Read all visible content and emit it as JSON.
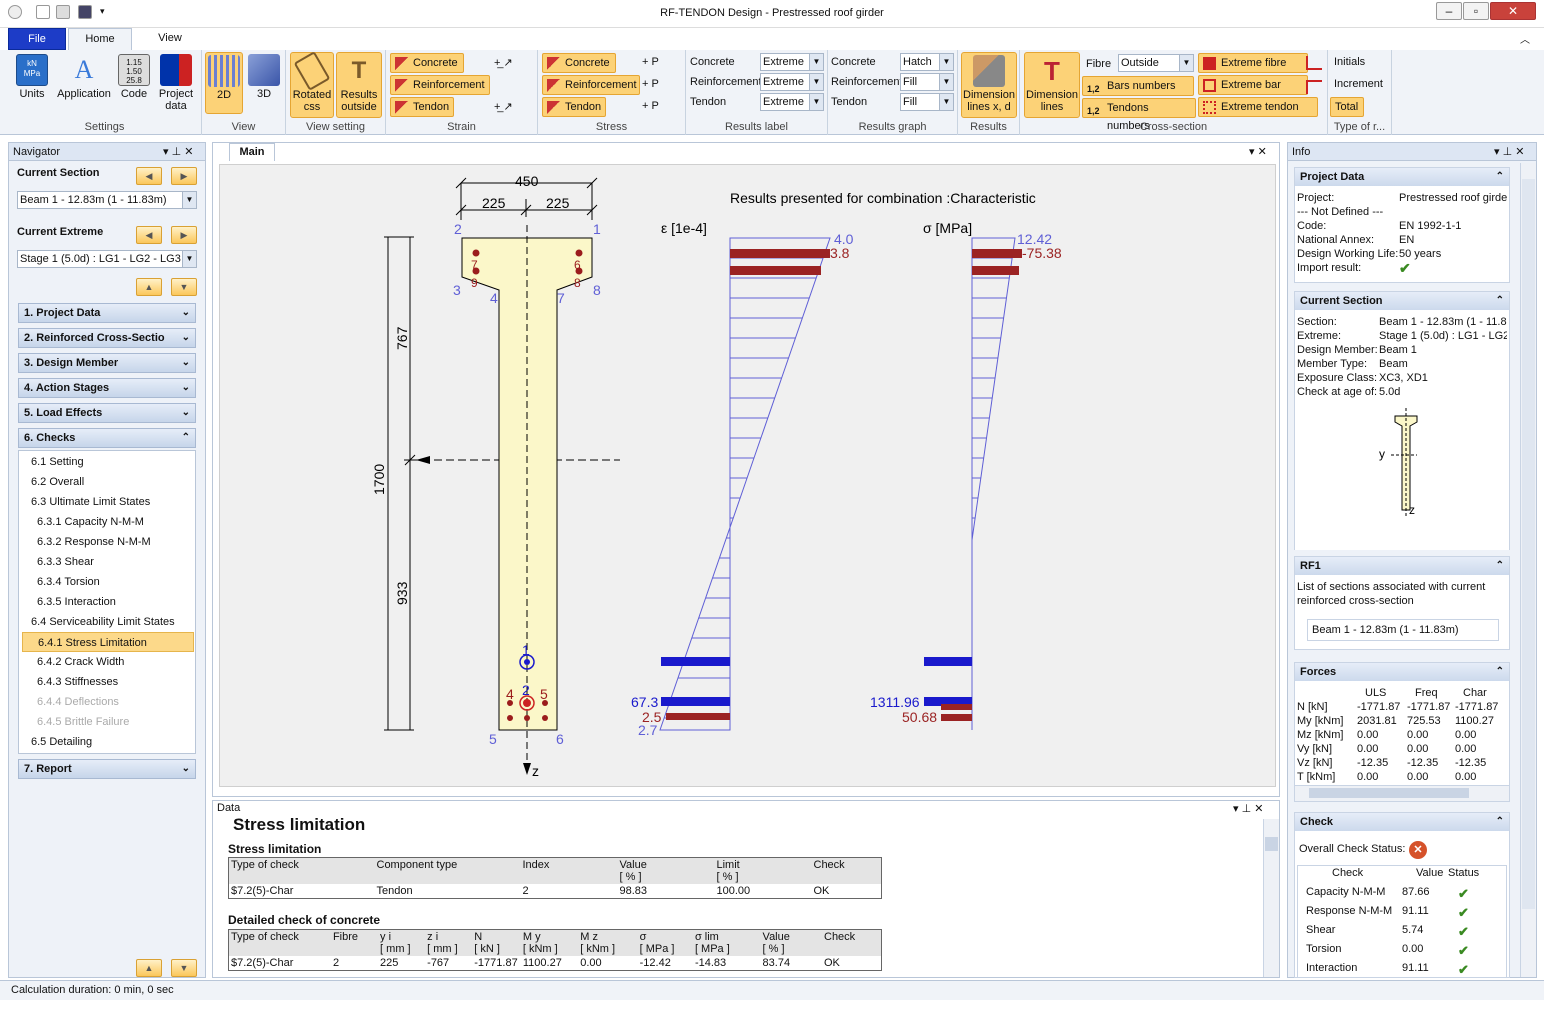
{
  "window": {
    "title": "RF-TENDON Design - Prestressed roof girder"
  },
  "ribbon_tabs": [
    "File",
    "Home",
    "View"
  ],
  "ribbon": {
    "settings": {
      "label": "Settings",
      "units": "Units",
      "application": "Application",
      "code": "Code",
      "project_data_1": "Project",
      "project_data_2": "data"
    },
    "view": {
      "label": "View",
      "b2d": "2D",
      "b3d": "3D"
    },
    "view_setting": {
      "label": "View setting",
      "rotated_1": "Rotated",
      "rotated_2": "css",
      "results_1": "Results",
      "results_2": "outside"
    },
    "strain": {
      "label": "Strain",
      "concrete": "Concrete",
      "reinforcement": "Reinforcement",
      "tendon": "Tendon"
    },
    "stress": {
      "label": "Stress",
      "concrete": "Concrete",
      "reinforcement": "Reinforcement",
      "tendon": "Tendon"
    },
    "results_label": {
      "label": "Results label",
      "concrete": "Concrete",
      "reinforcement": "Reinforcement",
      "tendon": "Tendon",
      "v1": "Extreme",
      "v2": "Extreme",
      "v3": "Extreme"
    },
    "results_graph": {
      "label": "Results graph",
      "concrete": "Concrete",
      "reinforcement": "Reinforcement",
      "tendon": "Tendon",
      "v1": "Hatch",
      "v2": "Fill",
      "v3": "Fill"
    },
    "results": {
      "label": "Results",
      "dim_1": "Dimension",
      "dim_2": "lines x, d"
    },
    "cross_section": {
      "label": "Cross-section",
      "dim_1": "Dimension",
      "dim_2": "lines",
      "fibre": "Fibre",
      "fibre_value": "Outside",
      "bars_numbers": "Bars numbers",
      "tendons_numbers": "Tendons numbers",
      "extreme_fibre": "Extreme fibre",
      "extreme_bar": "Extreme bar",
      "extreme_tendon": "Extreme tendon"
    },
    "type": {
      "label": "Type of r...",
      "initials": "Initials",
      "increment": "Increment",
      "total": "Total"
    }
  },
  "navigator": {
    "title": "Navigator",
    "current_section_label": "Current Section",
    "current_section_value": "Beam 1 - 12.83m (1 - 11.83m)",
    "current_extreme_label": "Current Extreme",
    "current_extreme_value": "Stage 1 (5.0d) : LG1 - LG2 - LG3",
    "sections": [
      "1. Project Data",
      "2. Reinforced Cross-Sectio",
      "3. Design Member",
      "4. Action Stages",
      "5. Load Effects",
      "6. Checks"
    ],
    "items": [
      "6.1 Setting",
      "6.2 Overall",
      "6.3 Ultimate Limit States",
      "6.3.1 Capacity N-M-M",
      "6.3.2 Response N-M-M",
      "6.3.3 Shear",
      "6.3.4 Torsion",
      "6.3.5 Interaction",
      "6.4 Serviceability Limit States",
      "6.4.1 Stress Limitation",
      "6.4.2 Crack Width",
      "6.4.3 Stiffnesses",
      "6.4.4 Deflections",
      "6.4.5 Brittle Failure",
      "6.5 Detailing"
    ],
    "report": "7. Report"
  },
  "main": {
    "tab": "Main",
    "heading": "Results presented for combination :Characteristic",
    "strain_axis": "ε [1e-4]",
    "stress_axis": "σ [MPa]",
    "dims": {
      "top": "450",
      "left": "225",
      "right": "225",
      "h1": "767",
      "h2": "1700",
      "h3": "933"
    },
    "pts": {
      "p1": "1",
      "p2": "2",
      "p3": "3",
      "p4": "4",
      "p5": "5",
      "p6": "6",
      "p7": "7",
      "p8": "8"
    },
    "bars_top": {
      "a": "7",
      "b": "9",
      "c": "6",
      "d": "8"
    },
    "tendon": {
      "t1": "1",
      "t2": "2",
      "b4": "4",
      "b5": "5",
      "b3": "3"
    },
    "z_label": "z",
    "strain_vals": {
      "top_blue": "4.0",
      "top_red": "3.8",
      "bot_blue": "67.3",
      "bot_red": "2.5",
      "bot_lav": "2.7"
    },
    "stress_vals": {
      "top_blue": "12.42",
      "top_red": "-75.38",
      "bot_blue": "1311.96",
      "bot_red": "50.68"
    }
  },
  "data": {
    "title": "Data",
    "heading": "Stress limitation",
    "sub1": "Stress limitation",
    "t1_headers": [
      "Type of check",
      "Component type",
      "Index",
      "Value",
      "Limit",
      "Check"
    ],
    "t1_units": [
      "",
      "",
      "",
      "[ % ]",
      "[ % ]",
      ""
    ],
    "t1_row": [
      "$7.2(5)-Char",
      "Tendon",
      "2",
      "98.83",
      "100.00",
      "OK"
    ],
    "sub2": "Detailed check of concrete",
    "t2_headers": [
      "Type of check",
      "Fibre",
      "y i",
      "z i",
      "N",
      "M y",
      "M z",
      "σ",
      "σ lim",
      "Value",
      "Check"
    ],
    "t2_units": [
      "",
      "",
      "[ mm ]",
      "[ mm ]",
      "[ kN ]",
      "[ kNm ]",
      "[ kNm ]",
      "[ MPa ]",
      "[ MPa ]",
      "[ % ]",
      ""
    ],
    "t2_row": [
      "$7.2(5)-Char",
      "2",
      "225",
      "-767",
      "-1771.87",
      "1100.27",
      "0.00",
      "-12.42",
      "-14.83",
      "83.74",
      "OK"
    ]
  },
  "info": {
    "title": "Info",
    "project": {
      "title": "Project Data",
      "rows": [
        [
          "Project:",
          "Prestressed roof girde"
        ],
        [
          "--- Not Defined ---",
          ""
        ],
        [
          "Code:",
          "EN 1992-1-1"
        ],
        [
          "National Annex:",
          "EN"
        ],
        [
          "Design Working Life:",
          "50 years"
        ],
        [
          "Import result:",
          ""
        ]
      ]
    },
    "section": {
      "title": "Current Section",
      "rows": [
        [
          "Section:",
          "Beam 1 - 12.83m (1 - 11.83"
        ],
        [
          "Extreme:",
          "Stage 1 (5.0d) : LG1 - LG2 -"
        ],
        [
          "Design Member:",
          "Beam 1"
        ],
        [
          "Member Type:",
          "Beam"
        ],
        [
          "Exposure Class:",
          "XC3, XD1"
        ],
        [
          "Check at age of:",
          "5.0d"
        ]
      ],
      "y": "y",
      "z": "z"
    },
    "rf1": {
      "title": "RF1",
      "text1": "List of sections associated with current",
      "text2": "reinforced cross-section",
      "item": "Beam 1 - 12.83m (1 - 11.83m)"
    },
    "forces": {
      "title": "Forces",
      "headers": [
        "",
        "ULS",
        "Freq",
        "Char"
      ],
      "rows": [
        [
          "N [kN]",
          "-1771.87",
          "-1771.87",
          "-1771.87"
        ],
        [
          "My [kNm]",
          "2031.81",
          "725.53",
          "1100.27"
        ],
        [
          "Mz [kNm]",
          "0.00",
          "0.00",
          "0.00"
        ],
        [
          "Vy [kN]",
          "0.00",
          "0.00",
          "0.00"
        ],
        [
          "Vz [kN]",
          "-12.35",
          "-12.35",
          "-12.35"
        ],
        [
          "T [kNm]",
          "0.00",
          "0.00",
          "0.00"
        ]
      ]
    },
    "check": {
      "title": "Check",
      "overall": "Overall Check Status:",
      "headers": [
        "Check",
        "Value",
        "Status"
      ],
      "rows": [
        [
          "Capacity N-M-M",
          "87.66"
        ],
        [
          "Response N-M-M",
          "91.11"
        ],
        [
          "Shear",
          "5.74"
        ],
        [
          "Torsion",
          "0.00"
        ],
        [
          "Interaction",
          "91.11"
        ]
      ]
    }
  },
  "status": {
    "text": "Calculation duration: 0 min, 0 sec"
  }
}
